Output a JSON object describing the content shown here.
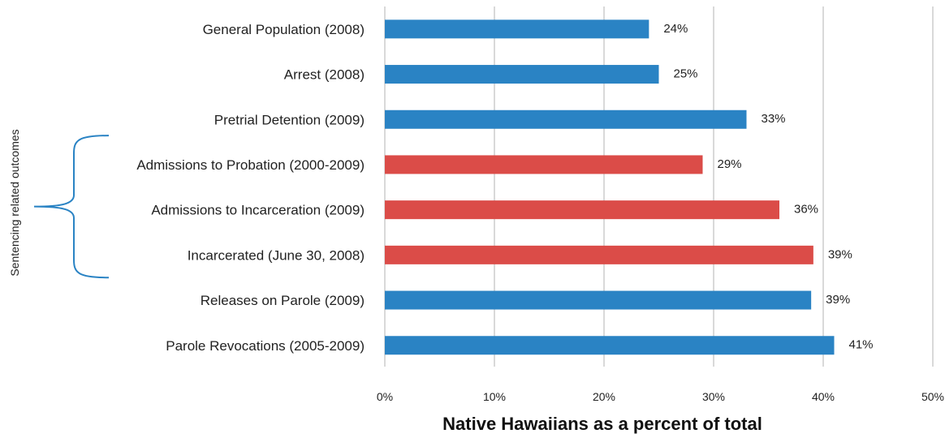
{
  "chart_data": {
    "type": "bar",
    "orientation": "horizontal",
    "categories": [
      "General Population (2008)",
      "Arrest (2008)",
      "Pretrial Detention (2009)",
      "Admissions to Probation (2000-2009)",
      "Admissions to Incarceration (2009)",
      "Incarcerated (June 30, 2008)",
      "Releases on Parole (2009)",
      "Parole Revocations (2005-2009)"
    ],
    "values": [
      24.1,
      25,
      33,
      29,
      36,
      39.1,
      38.9,
      41
    ],
    "data_labels": [
      "24%",
      "25%",
      "33%",
      "29%",
      "36%",
      "39%",
      "39%",
      "41%"
    ],
    "highlighted": [
      false,
      false,
      false,
      true,
      true,
      true,
      false,
      false
    ],
    "colors": {
      "default": "#2a83c4",
      "highlight": "#db4c48",
      "bracket": "#2a83c4"
    },
    "xlim": [
      0,
      50
    ],
    "x_ticks": [
      "0%",
      "10%",
      "20%",
      "30%",
      "40%",
      "50%"
    ],
    "xlabel": "Native Hawaiians as a percent of total",
    "ylabel": "",
    "grid": "vertical",
    "group_annotation": {
      "label": "Sentencing related outcomes",
      "start_index": 3,
      "end_index": 5
    }
  }
}
